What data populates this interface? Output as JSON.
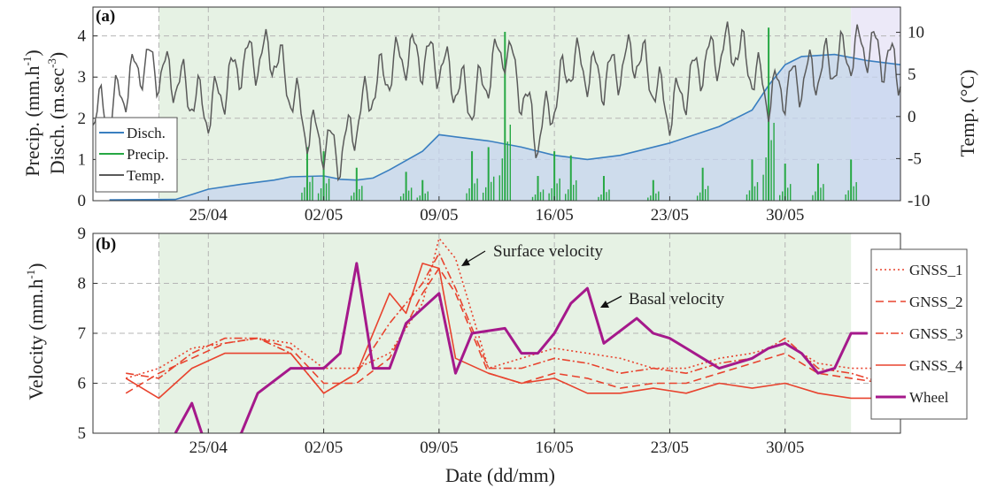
{
  "chart_data": [
    {
      "panel": "(a)",
      "type": "area",
      "ylabel_left_1": "Precip. (mm.h",
      "ylabel_left_1_sup": "-1",
      "ylabel_left_1_end": ")",
      "ylabel_left_2": "Disch. (m.sec",
      "ylabel_left_2_sup": "-3",
      "ylabel_left_2_end": ")",
      "ylabel_right": "Temp. (°C)",
      "ylim_left": [
        0,
        4.7
      ],
      "ylim_right": [
        -10,
        13
      ],
      "yticks_left": [
        "0",
        "1",
        "2",
        "3",
        "4"
      ],
      "yticks_right": [
        "-10",
        "-5",
        "0",
        "5",
        "10"
      ],
      "x_range_days": [
        "2024-04-18",
        "2024-06-06"
      ],
      "legend": {
        "placement": "bottom-left",
        "entries": [
          "Disch.",
          "Precip.",
          "Temp."
        ]
      },
      "colors": {
        "disch": "#3a7fc0",
        "precip": "#27a844",
        "temp": "#5a5a5a",
        "shade_main": "#e6f2e4",
        "shade_end": "#ece9f8",
        "disch_fill": "#c5d4ef"
      },
      "series": [
        {
          "name": "Disch.",
          "x": [
            "19/04",
            "23/04",
            "24/04",
            "25/04",
            "27/04",
            "29/04",
            "30/04",
            "02/05",
            "03/05",
            "04/05",
            "05/05",
            "06/05",
            "08/05",
            "09/05",
            "10/05",
            "12/05",
            "14/05",
            "16/05",
            "18/05",
            "20/05",
            "23/05",
            "26/05",
            "28/05",
            "29/05",
            "30/05",
            "31/05",
            "02/06",
            "04/06",
            "06/06"
          ],
          "values": [
            0.02,
            0.03,
            0.15,
            0.28,
            0.4,
            0.5,
            0.58,
            0.6,
            0.52,
            0.5,
            0.55,
            0.75,
            1.2,
            1.6,
            1.55,
            1.45,
            1.3,
            1.1,
            1.0,
            1.1,
            1.4,
            1.8,
            2.2,
            2.8,
            3.3,
            3.5,
            3.55,
            3.4,
            3.3
          ]
        },
        {
          "name": "Precip.",
          "x": [
            "01/05",
            "02/05",
            "04/05",
            "07/05",
            "08/05",
            "11/05",
            "12/05",
            "13/05",
            "15/05",
            "16/05",
            "17/05",
            "19/05",
            "22/05",
            "25/05",
            "28/05",
            "29/05",
            "30/05",
            "01/06",
            "03/06"
          ],
          "values": [
            1.3,
            1.2,
            0.8,
            0.7,
            0.5,
            1.2,
            1.3,
            4.1,
            0.6,
            1.2,
            1.1,
            0.6,
            0.5,
            0.8,
            1.0,
            4.2,
            0.9,
            0.9,
            1.0
          ]
        },
        {
          "name": "Temp.",
          "x": [
            "19/04",
            "21/04",
            "23/04",
            "25/04",
            "27/04",
            "29/04",
            "01/05",
            "03/05",
            "05/05",
            "07/05",
            "09/05",
            "11/05",
            "13/05",
            "15/05",
            "17/05",
            "19/05",
            "21/05",
            "23/05",
            "25/05",
            "27/05",
            "29/05",
            "31/05",
            "02/06",
            "04/06",
            "06/06"
          ],
          "values": [
            2,
            8,
            6,
            2,
            8,
            9,
            0,
            -3,
            5,
            9,
            8,
            3,
            10,
            -1,
            8,
            6,
            9,
            2,
            8,
            10,
            4,
            6,
            8,
            10,
            7
          ]
        }
      ]
    },
    {
      "panel": "(b)",
      "type": "line",
      "ylabel": "Velocity (mm.h",
      "ylabel_sup": "-1",
      "ylabel_end": ")",
      "xlabel": "Date (dd/mm)",
      "ylim": [
        5,
        9
      ],
      "yticks": [
        "5",
        "6",
        "7",
        "8",
        "9"
      ],
      "xticks": [
        "25/04",
        "02/05",
        "09/05",
        "16/05",
        "23/05",
        "30/05"
      ],
      "legend": {
        "placement": "right",
        "entries": [
          "GNSS_1",
          "GNSS_2",
          "GNSS_3",
          "GNSS_4",
          "Wheel"
        ]
      },
      "annotations": [
        "Surface velocity",
        "Basal velocity"
      ],
      "colors": {
        "gnss": "#e8432e",
        "wheel": "#a5198b"
      },
      "series": [
        {
          "name": "GNSS_1",
          "x": [
            "20/04",
            "22/04",
            "24/04",
            "26/04",
            "28/04",
            "30/04",
            "02/05",
            "04/05",
            "06/05",
            "08/05",
            "09/05",
            "10/05",
            "12/05",
            "14/05",
            "16/05",
            "18/05",
            "20/05",
            "22/05",
            "24/05",
            "26/05",
            "28/05",
            "30/05",
            "01/06",
            "03/06",
            "05/06"
          ],
          "values": [
            6.1,
            6.3,
            6.7,
            6.8,
            6.9,
            6.8,
            6.3,
            6.3,
            6.6,
            7.6,
            8.9,
            8.5,
            6.3,
            6.5,
            6.7,
            6.6,
            6.5,
            6.3,
            6.3,
            6.5,
            6.6,
            6.8,
            6.4,
            6.3,
            6.3
          ]
        },
        {
          "name": "GNSS_2",
          "x": [
            "20/04",
            "22/04",
            "24/04",
            "26/04",
            "28/04",
            "30/04",
            "02/05",
            "04/05",
            "06/05",
            "08/05",
            "09/05",
            "10/05",
            "12/05",
            "14/05",
            "16/05",
            "18/05",
            "20/05",
            "22/05",
            "24/05",
            "26/05",
            "28/05",
            "30/05",
            "01/06",
            "03/06",
            "05/06"
          ],
          "values": [
            5.8,
            6.2,
            6.5,
            6.8,
            6.9,
            6.7,
            6.0,
            6.0,
            6.5,
            7.8,
            8.3,
            7.8,
            6.2,
            6.0,
            6.2,
            6.1,
            5.9,
            6.0,
            6.0,
            6.2,
            6.4,
            6.6,
            6.2,
            6.1,
            6.0
          ]
        },
        {
          "name": "GNSS_3",
          "x": [
            "20/04",
            "22/04",
            "24/04",
            "26/04",
            "28/04",
            "30/04",
            "02/05",
            "04/05",
            "06/05",
            "08/05",
            "09/05",
            "10/05",
            "12/05",
            "14/05",
            "16/05",
            "18/05",
            "20/05",
            "22/05",
            "24/05",
            "26/05",
            "28/05",
            "30/05",
            "01/06",
            "03/06",
            "05/06"
          ],
          "values": [
            6.2,
            6.1,
            6.6,
            6.9,
            6.9,
            6.6,
            5.8,
            6.2,
            7.2,
            8.0,
            8.6,
            7.9,
            6.3,
            6.3,
            6.5,
            6.4,
            6.2,
            6.3,
            6.2,
            6.4,
            6.5,
            6.9,
            6.3,
            6.2,
            6.0
          ]
        },
        {
          "name": "GNSS_4",
          "x": [
            "20/04",
            "22/04",
            "24/04",
            "26/04",
            "28/04",
            "30/04",
            "02/05",
            "04/05",
            "06/05",
            "07/05",
            "08/05",
            "09/05",
            "10/05",
            "12/05",
            "14/05",
            "16/05",
            "18/05",
            "20/05",
            "22/05",
            "24/05",
            "26/05",
            "28/05",
            "30/05",
            "01/06",
            "03/06",
            "05/06"
          ],
          "values": [
            6.1,
            5.7,
            6.3,
            6.6,
            6.6,
            6.6,
            5.8,
            6.2,
            7.8,
            7.4,
            8.4,
            8.3,
            6.5,
            6.2,
            6.0,
            6.1,
            5.8,
            5.8,
            5.9,
            5.8,
            6.0,
            5.9,
            6.0,
            5.8,
            5.7,
            5.7
          ]
        },
        {
          "name": "Wheel",
          "x": [
            "23/04",
            "24/04",
            "25/04",
            "27/04",
            "28/04",
            "30/04",
            "02/05",
            "03/05",
            "04/05",
            "05/05",
            "06/05",
            "07/05",
            "08/05",
            "09/05",
            "10/05",
            "11/05",
            "13/05",
            "14/05",
            "15/05",
            "16/05",
            "17/05",
            "18/05",
            "19/05",
            "21/05",
            "22/05",
            "23/05",
            "24/05",
            "25/05",
            "26/05",
            "27/05",
            "28/05",
            "29/05",
            "30/05",
            "31/05",
            "01/06",
            "02/06",
            "03/06",
            "04/06"
          ],
          "values": [
            5.0,
            5.6,
            4.6,
            5.0,
            5.8,
            6.3,
            6.3,
            6.6,
            8.4,
            6.3,
            6.3,
            7.2,
            7.5,
            7.8,
            6.2,
            7.0,
            7.1,
            6.6,
            6.6,
            7.0,
            7.6,
            7.9,
            6.8,
            7.3,
            7.0,
            6.9,
            6.7,
            6.5,
            6.3,
            6.4,
            6.5,
            6.7,
            6.8,
            6.6,
            6.2,
            6.3,
            7.0,
            7.0
          ]
        }
      ]
    }
  ]
}
